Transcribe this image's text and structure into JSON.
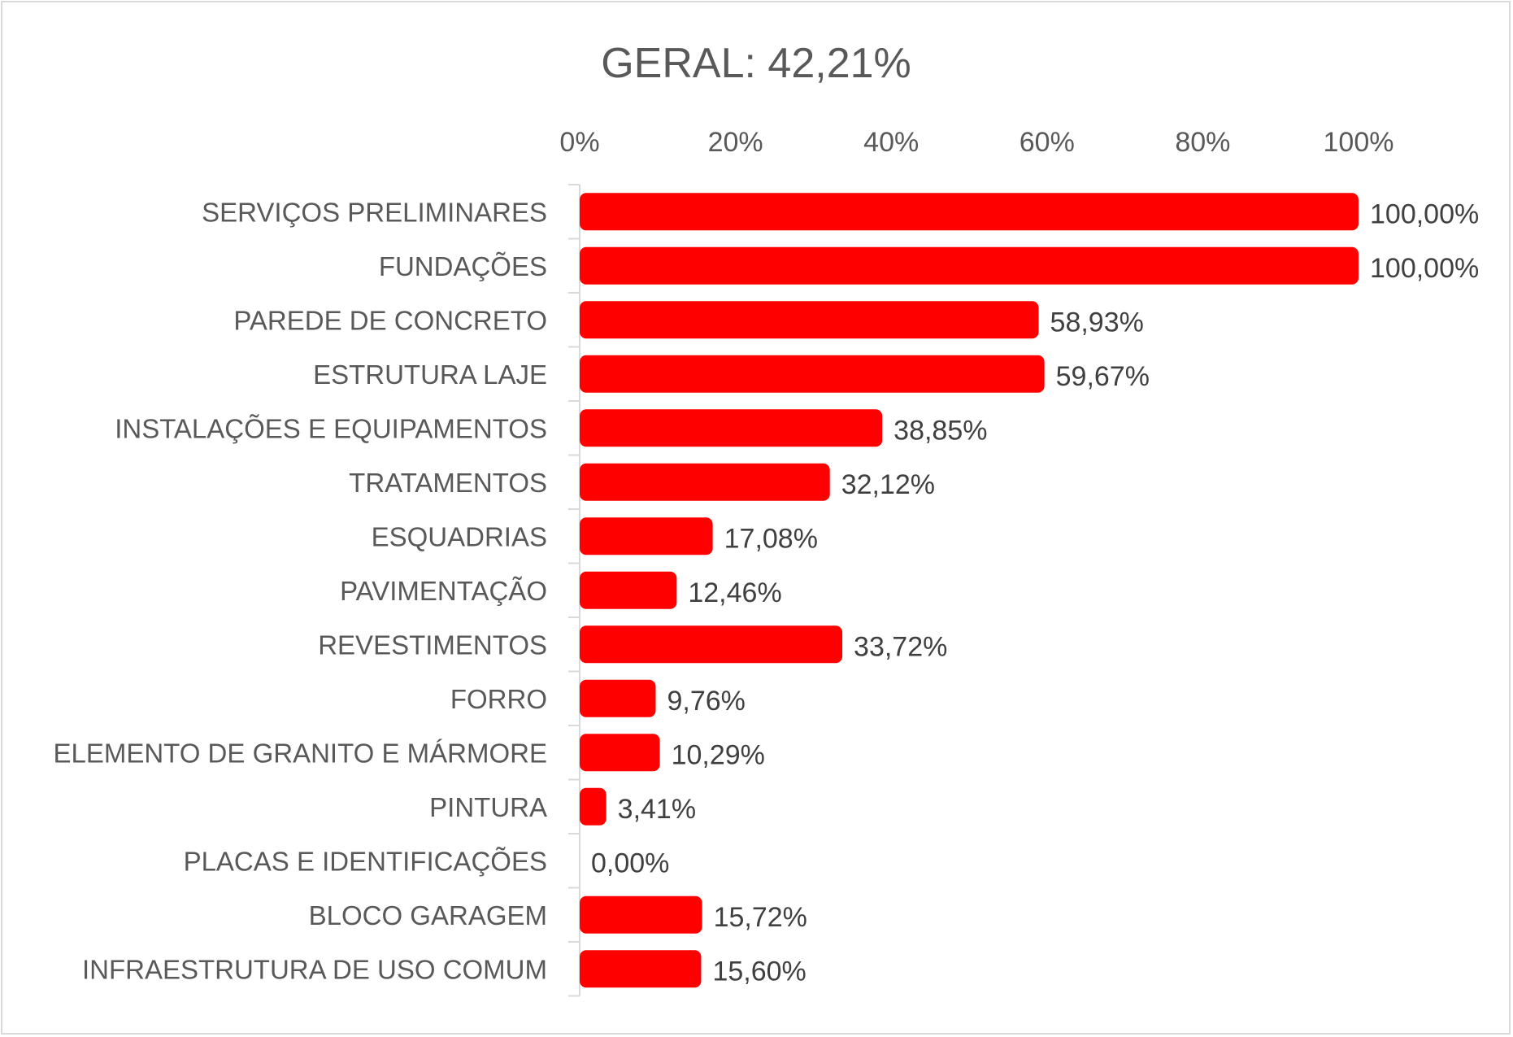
{
  "chart_data": {
    "type": "bar",
    "orientation": "horizontal",
    "title": "GERAL: 42,21%",
    "xlabel": "",
    "ylabel": "",
    "xlim": [
      0,
      100
    ],
    "x_ticks": [
      "0%",
      "20%",
      "40%",
      "60%",
      "80%",
      "100%"
    ],
    "x_axis_position": "top",
    "grid": false,
    "bar_color": "#ff0000",
    "categories": [
      "SERVIÇOS PRELIMINARES",
      "FUNDAÇÕES",
      "PAREDE DE CONCRETO",
      "ESTRUTURA LAJE",
      "INSTALAÇÕES E EQUIPAMENTOS",
      "TRATAMENTOS",
      "ESQUADRIAS",
      "PAVIMENTAÇÃO",
      "REVESTIMENTOS",
      "FORRO",
      "ELEMENTO DE GRANITO E MÁRMORE",
      "PINTURA",
      "PLACAS E IDENTIFICAÇÕES",
      "BLOCO GARAGEM",
      "INFRAESTRUTURA DE USO COMUM"
    ],
    "values": [
      100.0,
      100.0,
      58.93,
      59.67,
      38.85,
      32.12,
      17.08,
      12.46,
      33.72,
      9.76,
      10.29,
      3.41,
      0.0,
      15.72,
      15.6
    ],
    "value_labels": [
      "100,00%",
      "100,00%",
      "58,93%",
      "59,67%",
      "38,85%",
      "32,12%",
      "17,08%",
      "12,46%",
      "33,72%",
      "9,76%",
      "10,29%",
      "3,41%",
      "0,00%",
      "15,72%",
      "15,60%"
    ]
  }
}
